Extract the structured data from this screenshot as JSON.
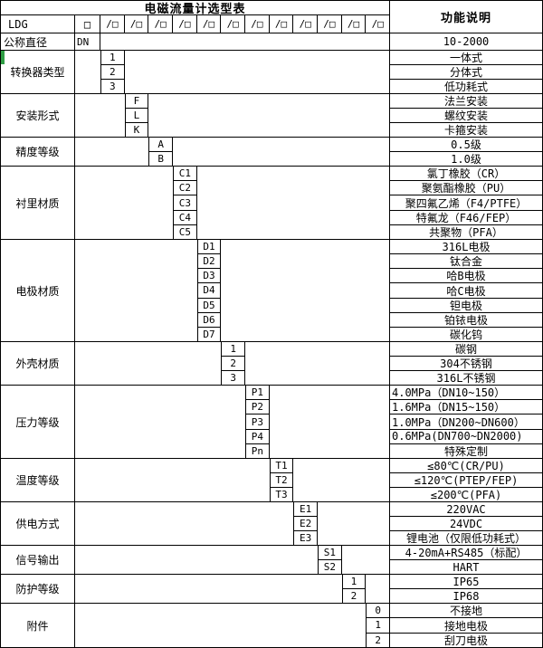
{
  "title": "电磁流量计选型表",
  "function_header": "功能说明",
  "model": {
    "prefix": "LDG",
    "box_glyph": "□",
    "slash_box_glyph": "/□",
    "slash_box_count": 12
  },
  "colors": {
    "border": "#000000",
    "background": "#ffffff",
    "text": "#000000",
    "artifact_green": "#2f9e44"
  },
  "groups": [
    {
      "label": "公称直径",
      "col": 0,
      "label_align": "left",
      "items": [
        {
          "code": "DN",
          "desc": "10-2000"
        }
      ]
    },
    {
      "label": "转换器类型",
      "col": 1,
      "items": [
        {
          "code": "1",
          "desc": "一体式"
        },
        {
          "code": "2",
          "desc": "分体式"
        },
        {
          "code": "3",
          "desc": "低功耗式"
        }
      ]
    },
    {
      "label": "安装形式",
      "col": 2,
      "items": [
        {
          "code": "F",
          "desc": "法兰安装"
        },
        {
          "code": "L",
          "desc": "螺纹安装"
        },
        {
          "code": "K",
          "desc": "卡箍安装"
        }
      ]
    },
    {
      "label": "精度等级",
      "col": 3,
      "items": [
        {
          "code": "A",
          "desc": "0.5级"
        },
        {
          "code": "B",
          "desc": "1.0级"
        }
      ]
    },
    {
      "label": "衬里材质",
      "col": 4,
      "items": [
        {
          "code": "C1",
          "desc": "氯丁橡胶（CR）"
        },
        {
          "code": "C2",
          "desc": "聚氨酯橡胶（PU）"
        },
        {
          "code": "C3",
          "desc": "聚四氟乙烯（F4/PTFE）"
        },
        {
          "code": "C4",
          "desc": "特氟龙（F46/FEP）"
        },
        {
          "code": "C5",
          "desc": "共聚物（PFA）"
        }
      ]
    },
    {
      "label": "电极材质",
      "col": 5,
      "items": [
        {
          "code": "D1",
          "desc": "316L电极"
        },
        {
          "code": "D2",
          "desc": "钛合金"
        },
        {
          "code": "D3",
          "desc": "哈B电极"
        },
        {
          "code": "D4",
          "desc": "哈C电极"
        },
        {
          "code": "D5",
          "desc": "钽电极"
        },
        {
          "code": "D6",
          "desc": "铂铱电极"
        },
        {
          "code": "D7",
          "desc": "碳化钨"
        }
      ]
    },
    {
      "label": "外壳材质",
      "col": 6,
      "items": [
        {
          "code": "1",
          "desc": "碳钢"
        },
        {
          "code": "2",
          "desc": "304不锈钢"
        },
        {
          "code": "3",
          "desc": "316L不锈钢"
        }
      ]
    },
    {
      "label": "压力等级",
      "col": 7,
      "items": [
        {
          "code": "P1",
          "desc": "4.0MPa（DN10~150）",
          "align": "left"
        },
        {
          "code": "P2",
          "desc": "1.6MPa（DN15~150）",
          "align": "left"
        },
        {
          "code": "P3",
          "desc": "1.0MPa（DN200~DN600）",
          "align": "left"
        },
        {
          "code": "P4",
          "desc": "0.6MPa(DN700~DN2000)",
          "align": "left"
        },
        {
          "code": "Pn",
          "desc": "特殊定制"
        }
      ]
    },
    {
      "label": "温度等级",
      "col": 8,
      "items": [
        {
          "code": "T1",
          "desc": "≤80℃(CR/PU)"
        },
        {
          "code": "T2",
          "desc": "≤120℃(PTEP/FEP)"
        },
        {
          "code": "T3",
          "desc": "≤200℃(PFA)"
        }
      ]
    },
    {
      "label": "供电方式",
      "col": 9,
      "items": [
        {
          "code": "E1",
          "desc": "220VAC"
        },
        {
          "code": "E2",
          "desc": "24VDC"
        },
        {
          "code": "E3",
          "desc": "锂电池（仅限低功耗式）"
        }
      ]
    },
    {
      "label": "信号输出",
      "col": 10,
      "items": [
        {
          "code": "S1",
          "desc": "4-20mA+RS485（标配）"
        },
        {
          "code": "S2",
          "desc": "HART"
        }
      ]
    },
    {
      "label": "防护等级",
      "col": 11,
      "items": [
        {
          "code": "1",
          "desc": "IP65"
        },
        {
          "code": "2",
          "desc": "IP68"
        }
      ]
    },
    {
      "label": "附件",
      "col": 12,
      "items": [
        {
          "code": "0",
          "desc": "不接地"
        },
        {
          "code": "1",
          "desc": "接地电极"
        },
        {
          "code": "2",
          "desc": "刮刀电极"
        }
      ]
    }
  ]
}
